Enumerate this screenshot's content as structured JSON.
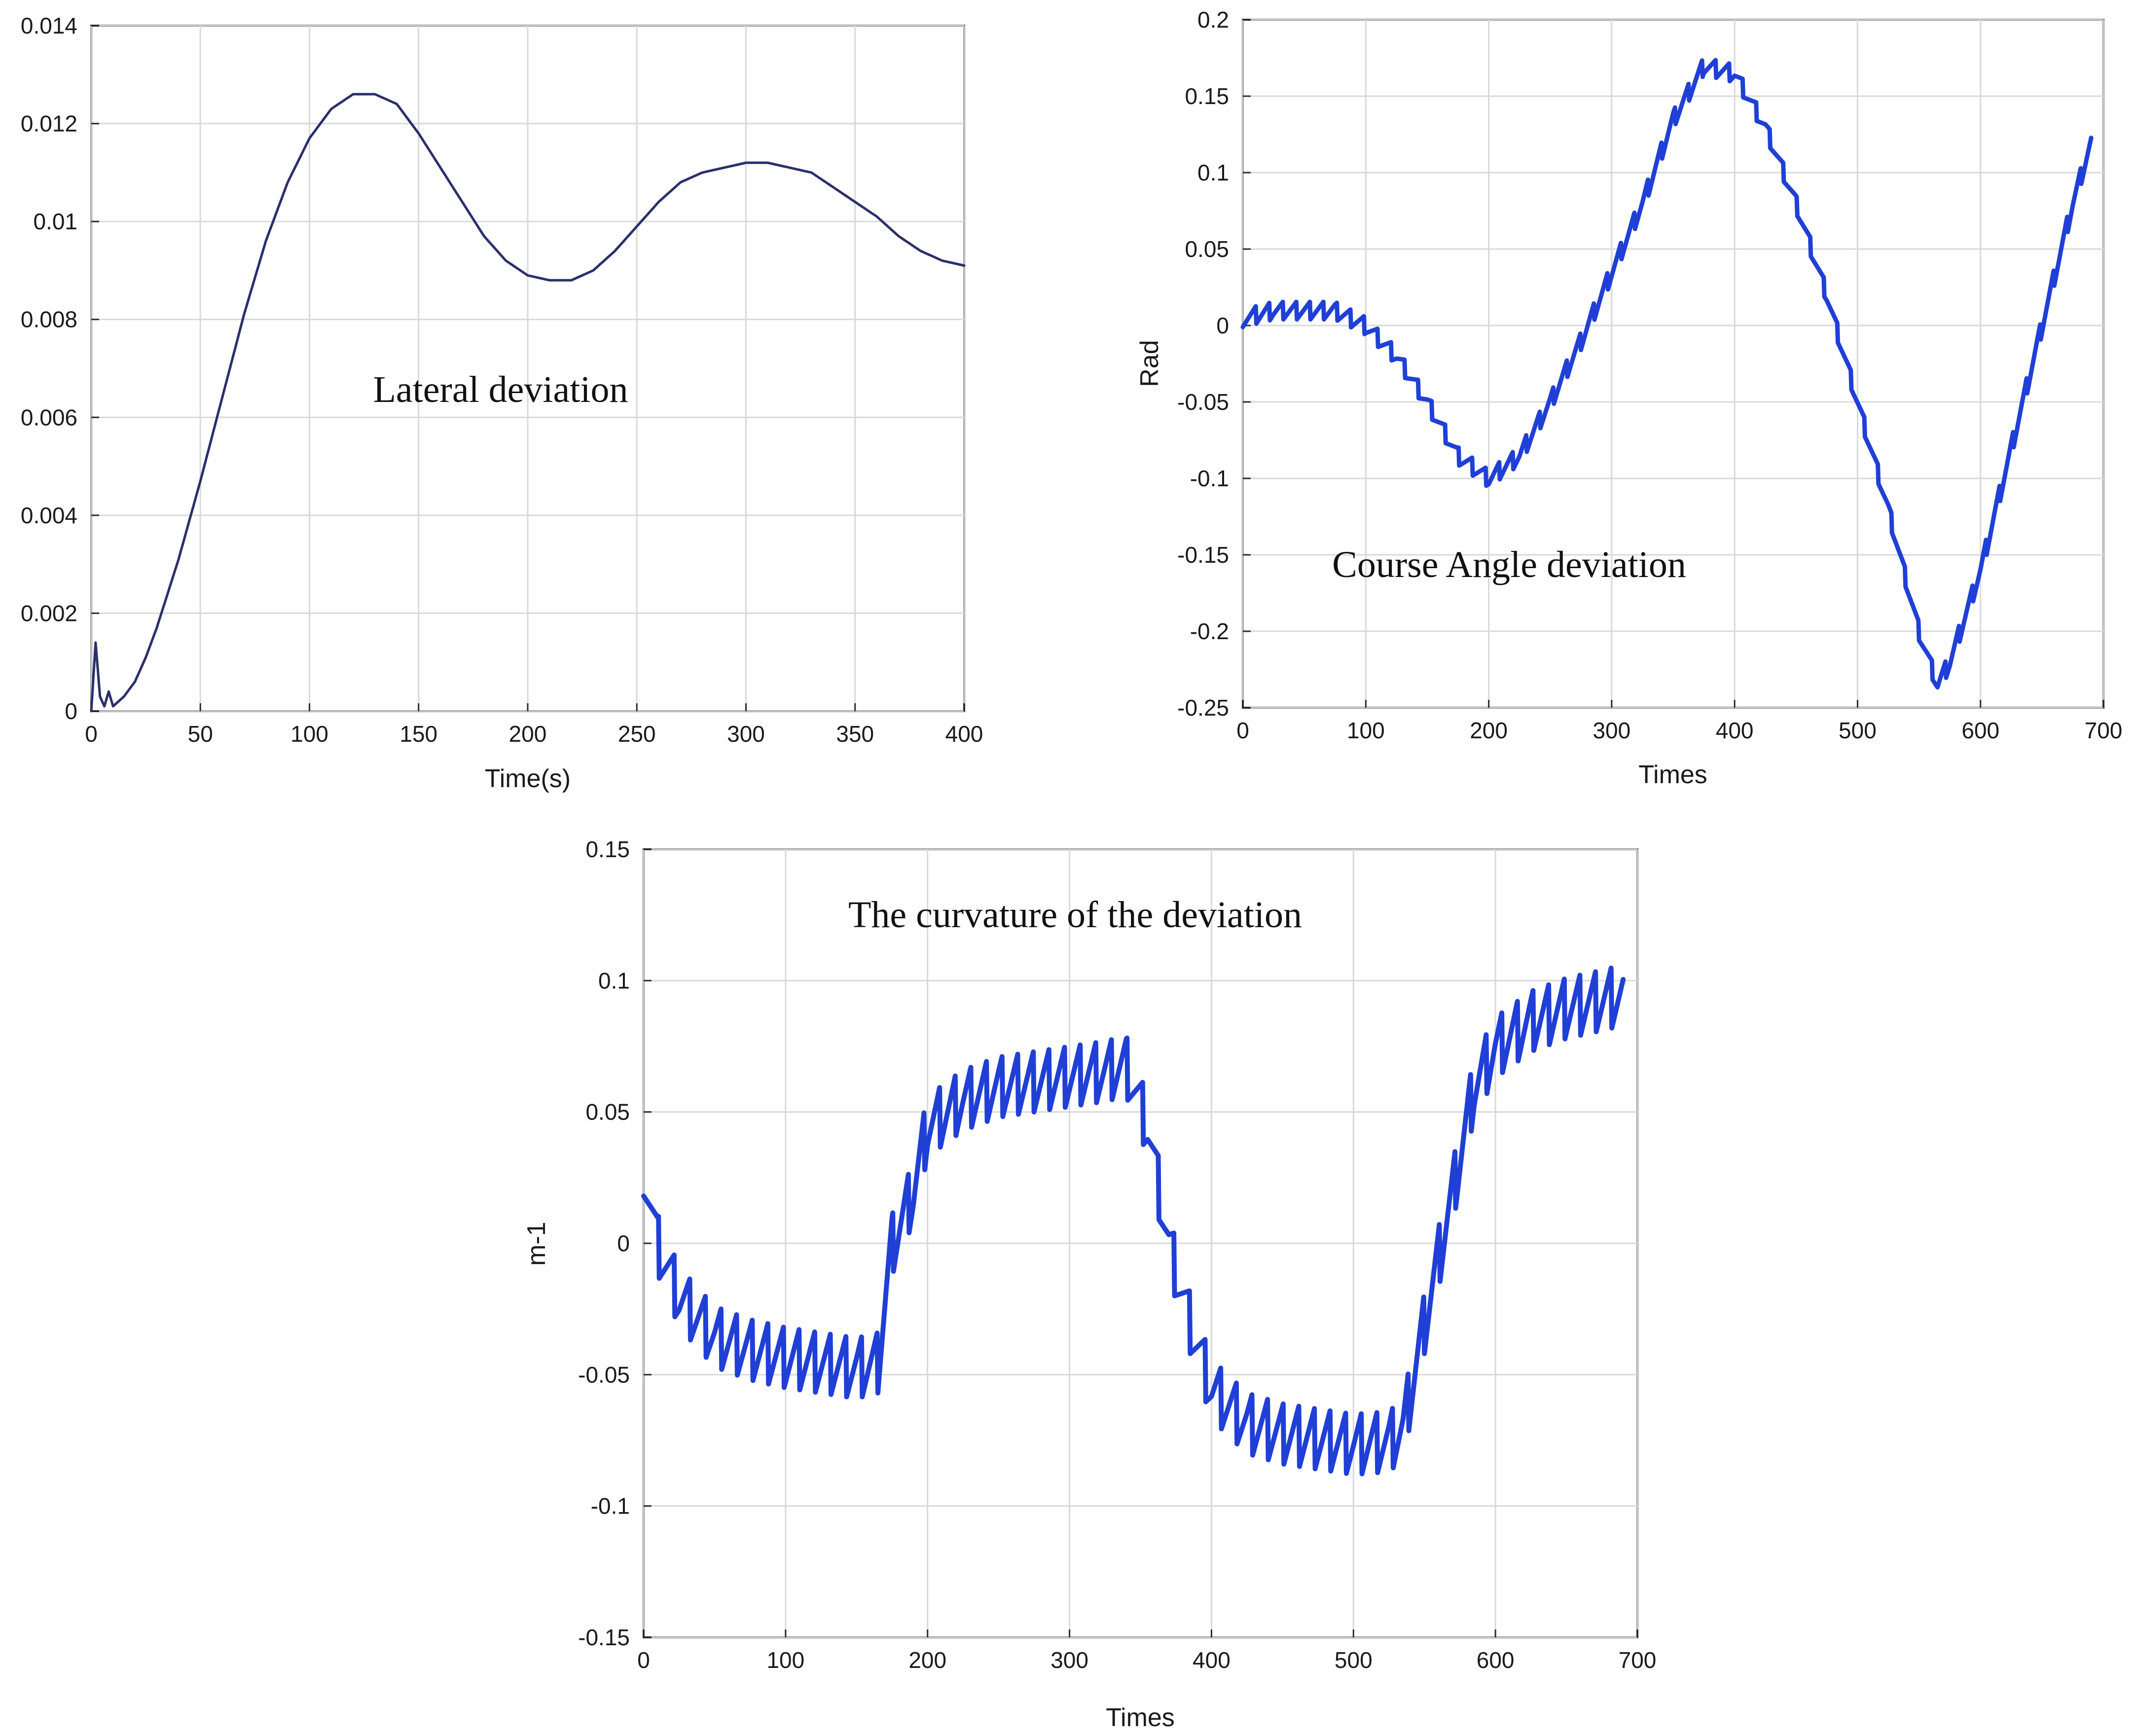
{
  "chart_data": [
    {
      "type": "line",
      "title": "",
      "annotation": "Lateral deviation",
      "xlabel": "Time(s)",
      "ylabel": "",
      "xlim": [
        0,
        400
      ],
      "ylim": [
        0,
        0.014
      ],
      "xticks": [
        0,
        50,
        100,
        150,
        200,
        250,
        300,
        350,
        400
      ],
      "yticks": [
        0,
        0.002,
        0.004,
        0.006,
        0.008,
        0.01,
        0.012,
        0.014
      ],
      "xtick_labels": [
        "0",
        "50",
        "100",
        "150",
        "200",
        "250",
        "300",
        "350",
        "400"
      ],
      "ytick_labels": [
        "0",
        "0.002",
        "0.004",
        "0.006",
        "0.008",
        "0.01",
        "0.012",
        "0.014"
      ],
      "grid": true,
      "series": [
        {
          "color": "#2a2f6b",
          "x": [
            0,
            2,
            4,
            6,
            8,
            10,
            15,
            20,
            25,
            30,
            40,
            50,
            60,
            70,
            80,
            90,
            100,
            110,
            120,
            130,
            140,
            150,
            160,
            170,
            180,
            190,
            200,
            210,
            220,
            230,
            240,
            250,
            260,
            270,
            280,
            290,
            300,
            310,
            320,
            330,
            340,
            350,
            360,
            370,
            380,
            390,
            400
          ],
          "y": [
            0,
            0.0014,
            0.0003,
            0.0001,
            0.0004,
            0.0001,
            0.0003,
            0.0006,
            0.0011,
            0.0017,
            0.0031,
            0.0047,
            0.0064,
            0.0081,
            0.0096,
            0.0108,
            0.0117,
            0.0123,
            0.0126,
            0.0126,
            0.0124,
            0.0118,
            0.0111,
            0.0104,
            0.0097,
            0.0092,
            0.0089,
            0.0088,
            0.0088,
            0.009,
            0.0094,
            0.0099,
            0.0104,
            0.0108,
            0.011,
            0.0111,
            0.0112,
            0.0112,
            0.0111,
            0.011,
            0.0107,
            0.0104,
            0.0101,
            0.0097,
            0.0094,
            0.0092,
            0.0091
          ]
        }
      ]
    },
    {
      "type": "line",
      "title": "",
      "annotation": "Course Angle deviation",
      "xlabel": "Times",
      "ylabel": "Rad",
      "xlim": [
        0,
        700
      ],
      "ylim": [
        -0.25,
        0.2
      ],
      "xticks": [
        0,
        100,
        200,
        300,
        400,
        500,
        600,
        700
      ],
      "yticks": [
        -0.25,
        -0.2,
        -0.15,
        -0.1,
        -0.05,
        0,
        0.05,
        0.1,
        0.15,
        0.2
      ],
      "xtick_labels": [
        "0",
        "100",
        "200",
        "300",
        "400",
        "500",
        "600",
        "700"
      ],
      "ytick_labels": [
        "-0.25",
        "-0.2",
        "-0.15",
        "-0.1",
        "-0.05",
        "0",
        "0.05",
        "0.1",
        "0.15",
        "0.2"
      ],
      "grid": true,
      "series": [
        {
          "color": "#1f3fd6",
          "x": [
            0,
            25,
            50,
            75,
            100,
            125,
            150,
            175,
            200,
            225,
            250,
            275,
            300,
            325,
            350,
            375,
            400,
            425,
            450,
            475,
            500,
            525,
            550,
            565,
            575,
            600,
            625,
            650,
            675,
            690
          ],
          "y": [
            0.005,
            0.01,
            0.01,
            0.01,
            0.0,
            -0.02,
            -0.05,
            -0.085,
            -0.1,
            -0.085,
            -0.05,
            -0.01,
            0.035,
            0.08,
            0.135,
            0.17,
            0.165,
            0.13,
            0.08,
            0.02,
            -0.05,
            -0.12,
            -0.2,
            -0.235,
            -0.22,
            -0.16,
            -0.08,
            0.0,
            0.08,
            0.12
          ]
        }
      ]
    },
    {
      "type": "line",
      "title": "",
      "annotation": "The curvature of the deviation",
      "xlabel": "Times",
      "ylabel": "m-1",
      "xlim": [
        0,
        700
      ],
      "ylim": [
        -0.15,
        0.15
      ],
      "xticks": [
        0,
        100,
        200,
        300,
        400,
        500,
        600,
        700
      ],
      "yticks": [
        -0.15,
        -0.1,
        -0.05,
        0,
        0.05,
        0.1,
        0.15
      ],
      "xtick_labels": [
        "0",
        "100",
        "200",
        "300",
        "400",
        "500",
        "600",
        "700"
      ],
      "ytick_labels": [
        "-0.15",
        "-0.1",
        "-0.05",
        "0",
        "0.05",
        "0.1",
        "0.15"
      ],
      "grid": true,
      "series": [
        {
          "color": "#1f3fd6",
          "x": [
            0,
            10,
            25,
            50,
            75,
            100,
            125,
            150,
            165,
            175,
            190,
            200,
            225,
            250,
            275,
            300,
            325,
            340,
            355,
            370,
            385,
            400,
            425,
            450,
            475,
            500,
            525,
            535,
            550,
            570,
            585,
            600,
            625,
            650,
            675,
            690
          ],
          "y": [
            0.03,
            0.0,
            -0.02,
            -0.035,
            -0.04,
            -0.043,
            -0.045,
            -0.047,
            -0.045,
            0.0,
            0.02,
            0.045,
            0.055,
            0.06,
            0.062,
            0.064,
            0.066,
            0.068,
            0.045,
            0.0,
            -0.03,
            -0.055,
            -0.068,
            -0.072,
            -0.074,
            -0.076,
            -0.075,
            -0.07,
            -0.03,
            0.02,
            0.06,
            0.075,
            0.085,
            0.09,
            0.093,
            0.095
          ]
        }
      ]
    }
  ]
}
